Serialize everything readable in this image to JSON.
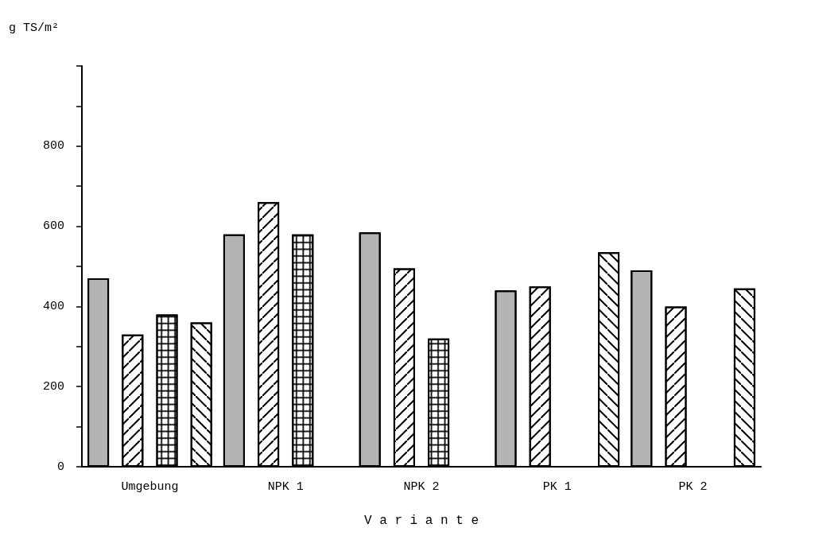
{
  "chart_data": {
    "type": "bar",
    "xlabel": "V a r i a n t e",
    "ylabel": "g TS/m²",
    "categories": [
      "Umgebung",
      "NPK 1",
      "NPK 2",
      "PK 1",
      "PK 2"
    ],
    "series": [
      {
        "color": "#b4b4b4",
        "values": [
          470,
          580,
          585,
          440,
          490
        ]
      },
      {
        "color": "#ffffff",
        "values": [
          330,
          660,
          495,
          450,
          400
        ]
      },
      {
        "color": "#ffffff",
        "values": [
          380,
          580,
          320,
          null,
          null
        ]
      },
      {
        "color": "#ffffff",
        "values": [
          360,
          null,
          null,
          535,
          445
        ]
      }
    ],
    "ylim": [
      0,
      1000
    ],
    "yticks": [
      0,
      {
        "value": 100,
        "label": null
      },
      200,
      {
        "value": 300,
        "label": null
      },
      400,
      {
        "value": 500,
        "label": null
      },
      600,
      {
        "value": 700,
        "label": null
      },
      800,
      {
        "value": 900,
        "label": null
      },
      {
        "value": 1000,
        "label": null
      }
    ],
    "grid": false
  }
}
